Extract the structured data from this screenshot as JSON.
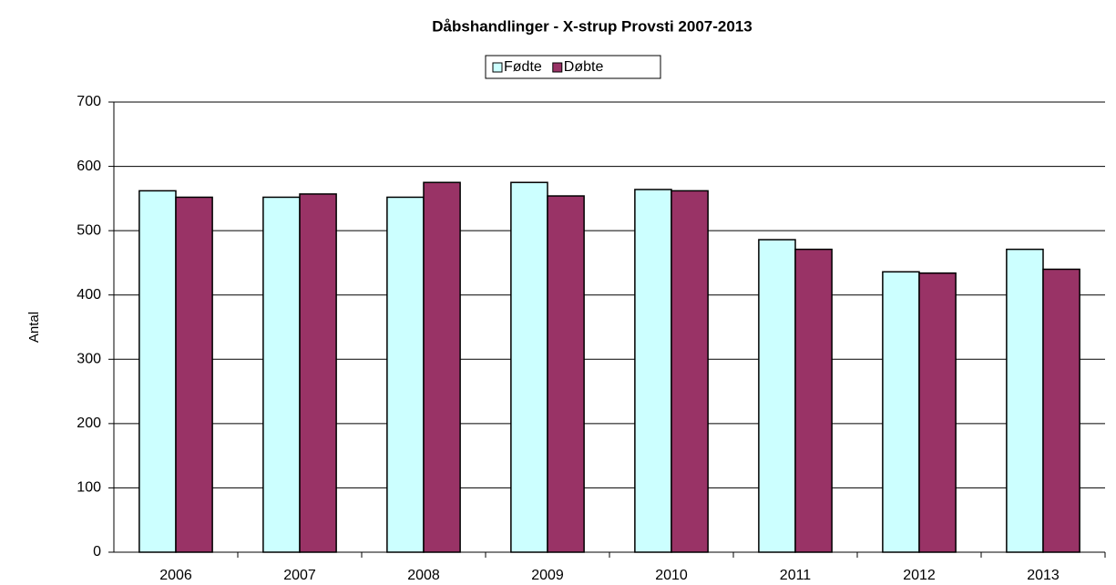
{
  "chart_data": {
    "type": "bar",
    "title": "Dåbshandlinger - X-strup Provsti 2007-2013",
    "y_label": "Antal",
    "categories": [
      "2006",
      "2007",
      "2008",
      "2009",
      "2010",
      "2011",
      "2012",
      "2013"
    ],
    "series": [
      {
        "name": "Fødte",
        "color": "#ccffff",
        "values": [
          562,
          552,
          552,
          575,
          564,
          486,
          436,
          471
        ]
      },
      {
        "name": "Døbte",
        "color": "#993366",
        "values": [
          552,
          557,
          575,
          554,
          562,
          471,
          434,
          440
        ]
      }
    ],
    "ylim": [
      0,
      700
    ],
    "yticks": [
      0,
      100,
      200,
      300,
      400,
      500,
      600,
      700
    ],
    "grid": true,
    "legend": "top"
  }
}
